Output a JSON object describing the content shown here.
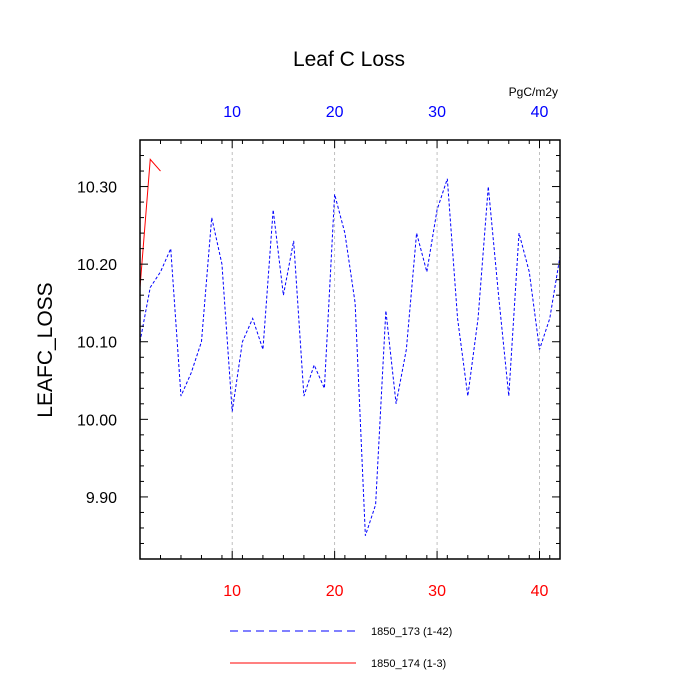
{
  "chart_data": {
    "type": "line",
    "title": "Leaf C Loss",
    "units": "PgC/m2y",
    "xlabel": "",
    "ylabel": "LEAFC_LOSS",
    "xlim": [
      1,
      42
    ],
    "ylim": [
      9.82,
      10.36
    ],
    "x_ticks": [
      10,
      20,
      30,
      40
    ],
    "x_tick_labels": [
      "10",
      "20",
      "30",
      "40"
    ],
    "y_ticks": [
      9.9,
      10.0,
      10.1,
      10.2,
      10.3
    ],
    "y_tick_labels": [
      "9.90",
      "10.00",
      "10.10",
      "10.20",
      "10.30"
    ],
    "grid": "vertical-dashed",
    "top_axis_color": "#0000ff",
    "bottom_axis_color": "#ff0000",
    "series": [
      {
        "name": "1850_173 (1-42)",
        "color": "#0000ff",
        "dash": "dashed",
        "x": [
          1,
          2,
          3,
          4,
          5,
          6,
          7,
          8,
          9,
          10,
          11,
          12,
          13,
          14,
          15,
          16,
          17,
          18,
          19,
          20,
          21,
          22,
          23,
          24,
          25,
          26,
          27,
          28,
          29,
          30,
          31,
          32,
          33,
          34,
          35,
          36,
          37,
          38,
          39,
          40,
          41,
          42
        ],
        "values": [
          10.1,
          10.17,
          10.19,
          10.22,
          10.03,
          10.06,
          10.1,
          10.26,
          10.2,
          10.01,
          10.1,
          10.13,
          10.09,
          10.27,
          10.16,
          10.23,
          10.03,
          10.07,
          10.04,
          10.29,
          10.24,
          10.15,
          9.85,
          9.89,
          10.14,
          10.02,
          10.09,
          10.24,
          10.19,
          10.27,
          10.31,
          10.13,
          10.03,
          10.13,
          10.3,
          10.16,
          10.03,
          10.24,
          10.19,
          10.09,
          10.13,
          10.21
        ]
      },
      {
        "name": "1850_174 (1-3)",
        "color": "#ff0000",
        "dash": "solid",
        "x": [
          1,
          2,
          3
        ],
        "values": [
          10.17,
          10.335,
          10.32
        ]
      }
    ]
  }
}
